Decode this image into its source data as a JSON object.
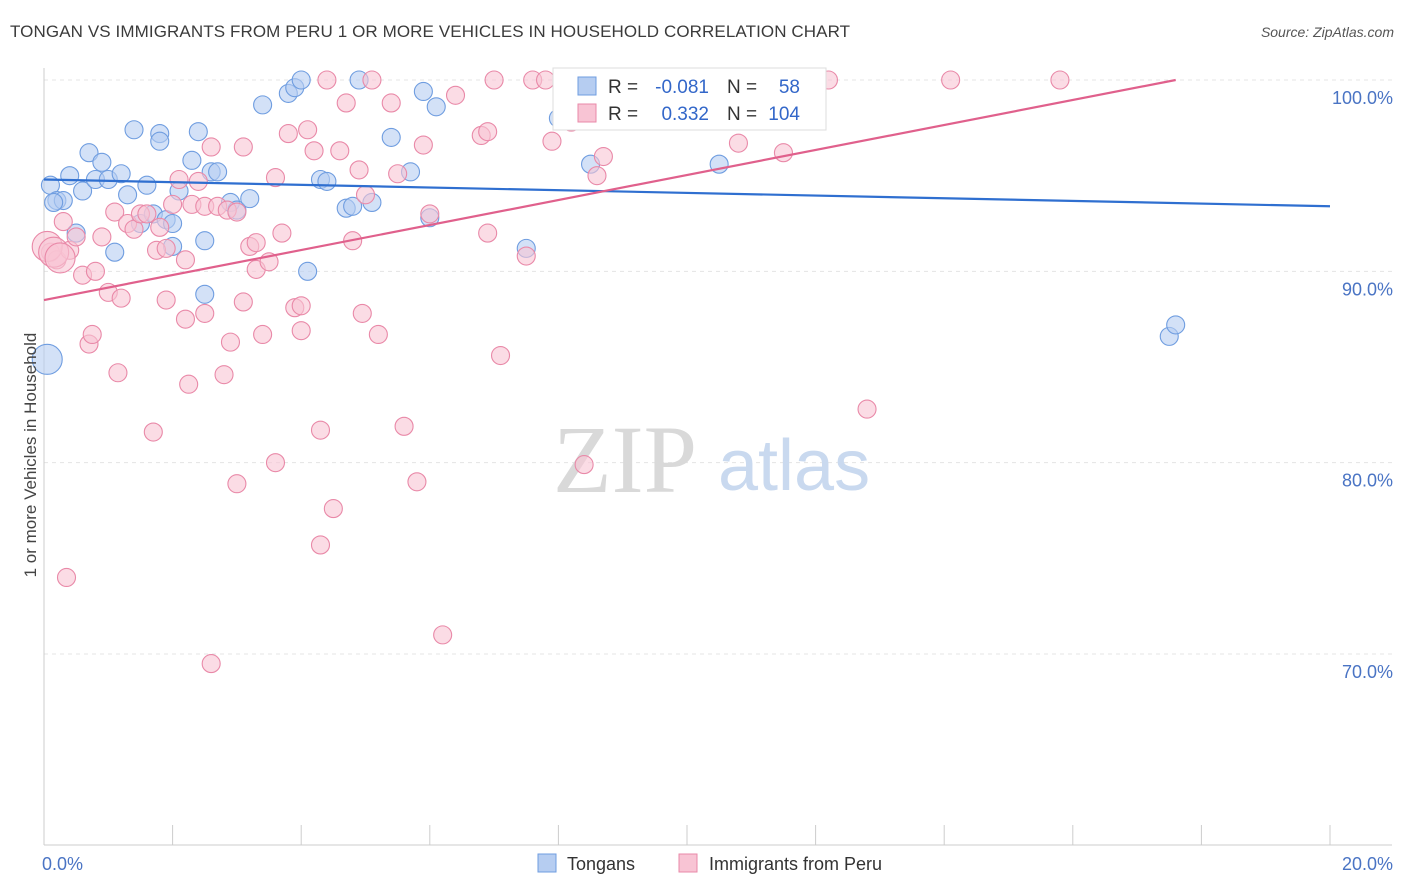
{
  "title": "TONGAN VS IMMIGRANTS FROM PERU 1 OR MORE VEHICLES IN HOUSEHOLD CORRELATION CHART",
  "source": "Source: ZipAtlas.com",
  "watermark": {
    "zip": "ZIP",
    "atlas": "atlas"
  },
  "legend": {
    "series1": {
      "r_label": "R =",
      "r_value": "-0.081",
      "n_label": "N =",
      "n_value": "58"
    },
    "series2": {
      "r_label": "R =",
      "r_value": "0.332",
      "n_label": "N =",
      "n_value": "104"
    }
  },
  "chart_data": {
    "type": "scatter",
    "title": "TONGAN VS IMMIGRANTS FROM PERU 1 OR MORE VEHICLES IN HOUSEHOLD CORRELATION CHART",
    "xlabel": "",
    "ylabel": "1 or more Vehicles in Household",
    "xlim": [
      0,
      20
    ],
    "ylim": [
      60,
      100
    ],
    "x_tick_labels": [
      "0.0%",
      "20.0%"
    ],
    "y_ticks": [
      {
        "value": 100,
        "label": "100.0%"
      },
      {
        "value": 90,
        "label": "90.0%"
      },
      {
        "value": 80,
        "label": "80.0%"
      },
      {
        "value": 70,
        "label": "70.0%"
      }
    ],
    "grid": true,
    "legend_position": "bottom",
    "series": [
      {
        "name": "Tongans",
        "color": "#6f9de0",
        "fill": "#b6cdf1",
        "trend": {
          "x1": 0,
          "y1": 94.8,
          "x2": 20,
          "y2": 93.4
        },
        "points": [
          [
            0.1,
            94.5
          ],
          [
            0.2,
            93.7
          ],
          [
            0.3,
            93.7
          ],
          [
            0.4,
            95
          ],
          [
            0.5,
            92
          ],
          [
            0.6,
            94.2
          ],
          [
            0.7,
            96.2
          ],
          [
            0.8,
            94.8
          ],
          [
            0.9,
            95.7
          ],
          [
            1.0,
            94.8
          ],
          [
            1.1,
            91
          ],
          [
            1.2,
            95.1
          ],
          [
            1.3,
            94
          ],
          [
            1.4,
            97.4
          ],
          [
            1.5,
            92.5
          ],
          [
            1.6,
            94.5
          ],
          [
            1.7,
            93
          ],
          [
            1.8,
            97.2
          ],
          [
            1.8,
            96.8
          ],
          [
            1.9,
            92.7
          ],
          [
            2.0,
            91.3
          ],
          [
            2.0,
            92.5
          ],
          [
            2.1,
            94.2
          ],
          [
            2.3,
            95.8
          ],
          [
            2.4,
            97.3
          ],
          [
            2.5,
            91.6
          ],
          [
            2.5,
            88.8
          ],
          [
            2.6,
            95.2
          ],
          [
            2.7,
            95.2
          ],
          [
            2.9,
            93.6
          ],
          [
            3.0,
            93.2
          ],
          [
            3.2,
            93.8
          ],
          [
            3.4,
            98.7
          ],
          [
            3.8,
            99.3
          ],
          [
            3.9,
            99.6
          ],
          [
            4.0,
            100
          ],
          [
            4.1,
            90
          ],
          [
            4.3,
            94.8
          ],
          [
            4.4,
            94.7
          ],
          [
            4.7,
            93.3
          ],
          [
            4.8,
            93.4
          ],
          [
            4.9,
            100
          ],
          [
            5.1,
            93.6
          ],
          [
            5.4,
            97
          ],
          [
            5.7,
            95.2
          ],
          [
            5.9,
            99.4
          ],
          [
            6.0,
            92.8
          ],
          [
            6.1,
            98.6
          ],
          [
            7.5,
            91.2
          ],
          [
            8.0,
            98
          ],
          [
            8.1,
            98.8
          ],
          [
            8.5,
            95.6
          ],
          [
            10.5,
            95.6
          ],
          [
            11.3,
            98.7
          ],
          [
            17.5,
            86.6
          ],
          [
            17.6,
            87.2
          ],
          [
            0.05,
            85.4
          ],
          [
            0.15,
            93.6
          ]
        ]
      },
      {
        "name": "Immigrants from Peru",
        "color": "#e989a8",
        "fill": "#f8c4d4",
        "trend": {
          "x1": 0,
          "y1": 88.5,
          "x2": 17.6,
          "y2": 100
        },
        "points": [
          [
            0.1,
            91
          ],
          [
            0.2,
            90.6
          ],
          [
            0.3,
            92.6
          ],
          [
            0.35,
            74
          ],
          [
            0.4,
            91.1
          ],
          [
            0.5,
            91.8
          ],
          [
            0.6,
            89.8
          ],
          [
            0.7,
            86.2
          ],
          [
            0.75,
            86.7
          ],
          [
            0.8,
            90
          ],
          [
            0.9,
            91.8
          ],
          [
            1.0,
            88.9
          ],
          [
            1.1,
            93.1
          ],
          [
            1.15,
            84.7
          ],
          [
            1.2,
            88.6
          ],
          [
            1.3,
            92.5
          ],
          [
            1.4,
            92.2
          ],
          [
            1.5,
            93
          ],
          [
            1.6,
            93
          ],
          [
            1.7,
            81.6
          ],
          [
            1.75,
            91.1
          ],
          [
            1.8,
            92.3
          ],
          [
            1.9,
            91.2
          ],
          [
            1.9,
            88.5
          ],
          [
            2.0,
            93.5
          ],
          [
            2.1,
            94.8
          ],
          [
            2.2,
            90.6
          ],
          [
            2.2,
            87.5
          ],
          [
            2.25,
            84.1
          ],
          [
            2.3,
            93.5
          ],
          [
            2.4,
            94.7
          ],
          [
            2.5,
            93.4
          ],
          [
            2.5,
            87.8
          ],
          [
            2.6,
            96.5
          ],
          [
            2.6,
            69.5
          ],
          [
            2.7,
            93.4
          ],
          [
            2.8,
            84.6
          ],
          [
            2.85,
            93.2
          ],
          [
            2.9,
            86.3
          ],
          [
            3.0,
            93.1
          ],
          [
            3.0,
            78.9
          ],
          [
            3.1,
            88.4
          ],
          [
            3.1,
            96.5
          ],
          [
            3.2,
            91.3
          ],
          [
            3.3,
            91.5
          ],
          [
            3.3,
            90.1
          ],
          [
            3.4,
            86.7
          ],
          [
            3.5,
            90.5
          ],
          [
            3.6,
            94.9
          ],
          [
            3.6,
            80
          ],
          [
            3.7,
            92
          ],
          [
            3.8,
            97.2
          ],
          [
            3.9,
            88.1
          ],
          [
            4.0,
            86.9
          ],
          [
            4.0,
            88.2
          ],
          [
            4.1,
            97.4
          ],
          [
            4.2,
            96.3
          ],
          [
            4.3,
            81.7
          ],
          [
            4.3,
            75.7
          ],
          [
            4.4,
            100
          ],
          [
            4.5,
            77.6
          ],
          [
            4.6,
            96.3
          ],
          [
            4.7,
            98.8
          ],
          [
            4.8,
            91.6
          ],
          [
            4.9,
            95.3
          ],
          [
            4.95,
            87.8
          ],
          [
            5.0,
            94
          ],
          [
            5.1,
            100
          ],
          [
            5.2,
            86.7
          ],
          [
            5.4,
            98.8
          ],
          [
            5.5,
            95.1
          ],
          [
            5.6,
            81.9
          ],
          [
            5.8,
            79
          ],
          [
            5.9,
            96.6
          ],
          [
            6.0,
            93
          ],
          [
            6.2,
            71
          ],
          [
            6.4,
            99.2
          ],
          [
            6.8,
            97.1
          ],
          [
            6.9,
            97.3
          ],
          [
            6.9,
            92
          ],
          [
            7.0,
            100
          ],
          [
            7.1,
            85.6
          ],
          [
            7.5,
            90.8
          ],
          [
            7.6,
            100
          ],
          [
            7.8,
            100
          ],
          [
            7.9,
            96.8
          ],
          [
            8.2,
            97.8
          ],
          [
            8.4,
            79.9
          ],
          [
            8.5,
            100
          ],
          [
            8.6,
            95
          ],
          [
            8.7,
            96
          ],
          [
            9.6,
            100
          ],
          [
            10.2,
            100
          ],
          [
            10.8,
            96.7
          ],
          [
            11.0,
            100
          ],
          [
            11.3,
            100
          ],
          [
            11.5,
            96.2
          ],
          [
            12.2,
            100
          ],
          [
            12.8,
            82.8
          ],
          [
            14.1,
            100
          ],
          [
            15.8,
            100
          ],
          [
            0.05,
            91.3
          ],
          [
            0.15,
            91
          ],
          [
            0.25,
            90.7
          ]
        ]
      }
    ]
  }
}
